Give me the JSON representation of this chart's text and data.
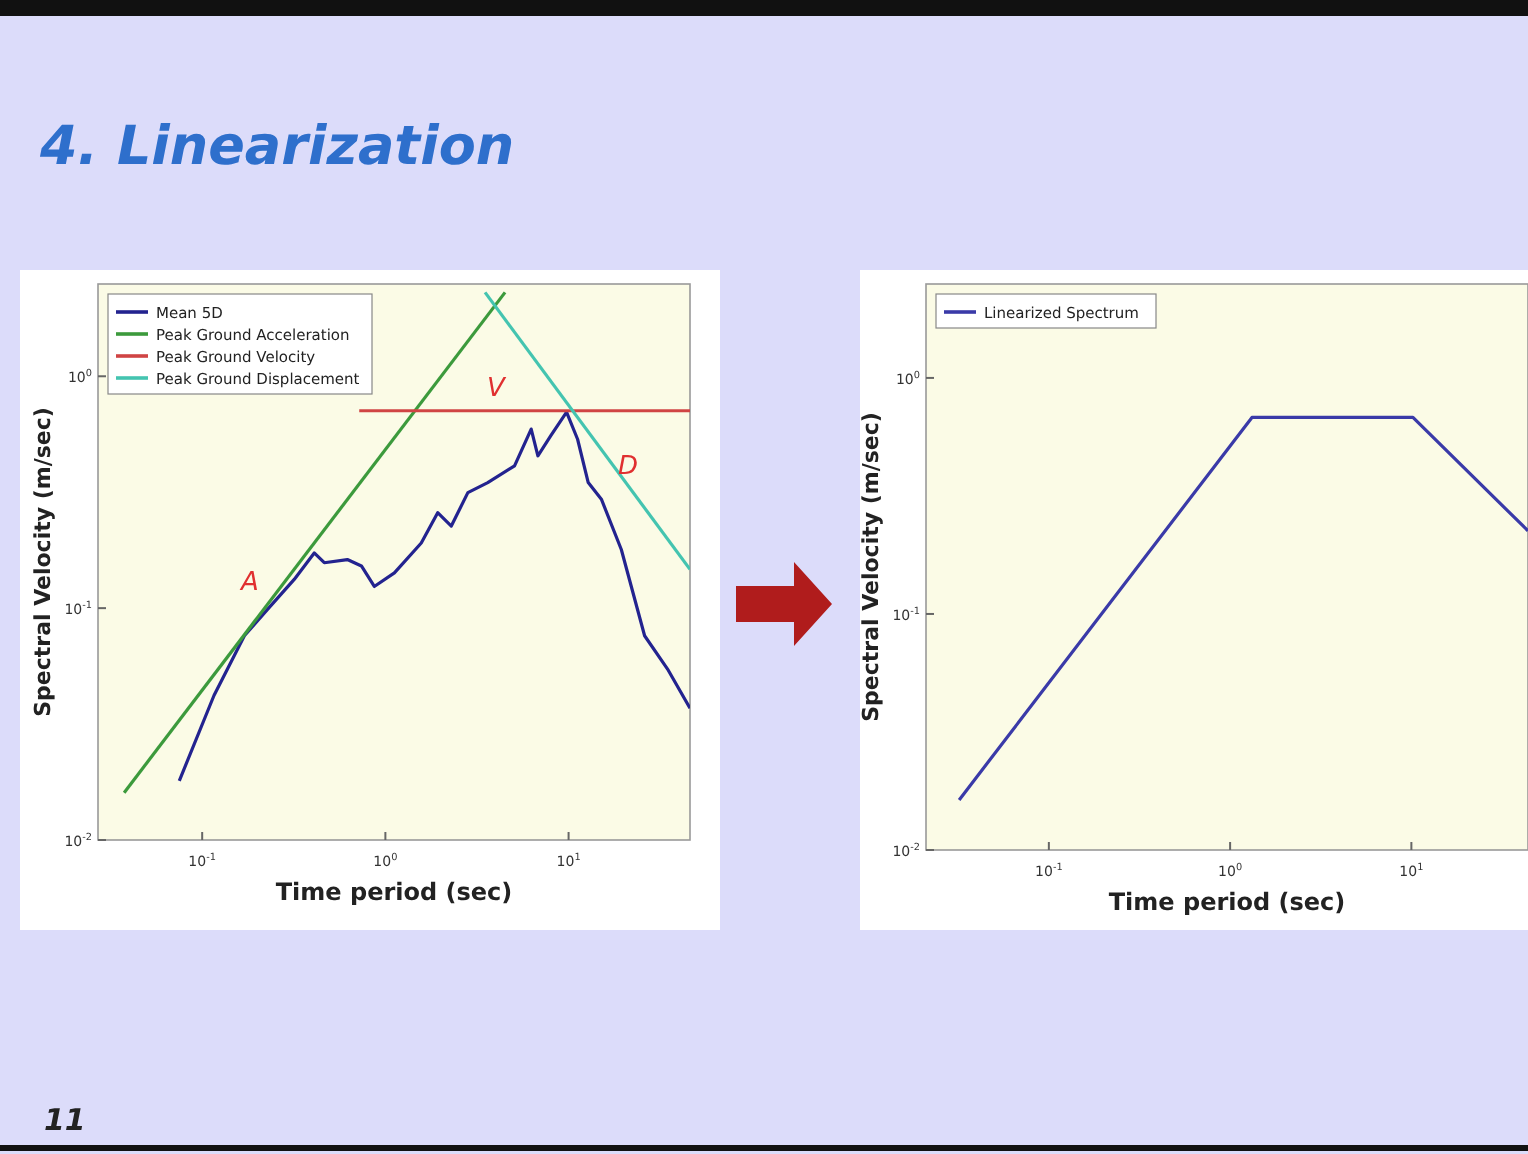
{
  "chart_data": [
    {
      "type": "line",
      "title": "4. Linearization",
      "xlabel": "Time period (sec)",
      "ylabel": "Spectral Velocity (m/sec)",
      "log": "xy",
      "legend": "top left",
      "grid": false,
      "xlim": [
        0.027,
        46
      ],
      "ylim": [
        0.01,
        2.5
      ],
      "xticks": [
        {
          "value": 0.1,
          "label": "10$^{-1}$"
        },
        {
          "value": 1,
          "label": "10$^{0}$"
        },
        {
          "value": 10,
          "label": "10$^{1}$"
        }
      ],
      "yticks": [
        {
          "value": 0.01,
          "label": "10$^{-2}$"
        },
        {
          "value": 0.1,
          "label": "10$^{-1}$"
        },
        {
          "value": 1,
          "label": "10$^{0}$"
        }
      ],
      "series": [
        {
          "name": "Mean 5D",
          "color": "#23238f",
          "x": [
            0.075,
            0.116,
            0.17,
            0.228,
            0.318,
            0.409,
            0.464,
            0.62,
            0.74,
            0.87,
            1.12,
            1.57,
            1.93,
            2.29,
            2.82,
            3.62,
            5.07,
            6.25,
            6.8,
            8.0,
            9.75,
            11.2,
            12.8,
            15.1,
            19.4,
            26,
            35,
            46
          ],
          "values": [
            0.018,
            0.042,
            0.076,
            0.099,
            0.133,
            0.173,
            0.157,
            0.162,
            0.152,
            0.124,
            0.142,
            0.191,
            0.258,
            0.226,
            0.315,
            0.348,
            0.411,
            0.592,
            0.454,
            0.554,
            0.7,
            0.535,
            0.348,
            0.295,
            0.179,
            0.076,
            0.054,
            0.037
          ]
        },
        {
          "name": "Peak Ground Acceleration",
          "color": "#3c9a3c",
          "x": [
            0.0375,
            4.5
          ],
          "values": [
            0.016,
            2.3
          ]
        },
        {
          "name": "Peak Ground Velocity",
          "color": "#d04444",
          "x": [
            0.72,
            46
          ],
          "values": [
            0.71,
            0.71
          ]
        },
        {
          "name": "Peak Ground Displacement",
          "color": "#44c4b0",
          "x": [
            3.5,
            46
          ],
          "values": [
            2.3,
            0.147
          ]
        }
      ],
      "annotations": [
        "A",
        "V",
        "D",
        "11"
      ]
    },
    {
      "type": "line",
      "xlabel": "Time period (sec)",
      "ylabel": "Spectral Velocity (m/sec)",
      "log": "xy",
      "legend": "top left",
      "grid": false,
      "xlim": [
        0.021,
        44
      ],
      "ylim": [
        0.01,
        2.5
      ],
      "xticks": [
        {
          "value": 0.1,
          "label": "10$^{-1}$"
        },
        {
          "value": 1,
          "label": "10$^{0}$"
        },
        {
          "value": 10,
          "label": "10$^{1}$"
        }
      ],
      "yticks": [
        {
          "value": 0.01,
          "label": "10$^{-2}$"
        },
        {
          "value": 0.1,
          "label": "10$^{-1}$"
        },
        {
          "value": 1,
          "label": "10$^{0}$"
        }
      ],
      "series": [
        {
          "name": "Linearized Spectrum",
          "color": "#3a3aa8",
          "x": [
            0.032,
            1.32,
            10.2,
            44
          ],
          "values": [
            0.0163,
            0.68,
            0.68,
            0.225
          ]
        }
      ]
    }
  ]
}
